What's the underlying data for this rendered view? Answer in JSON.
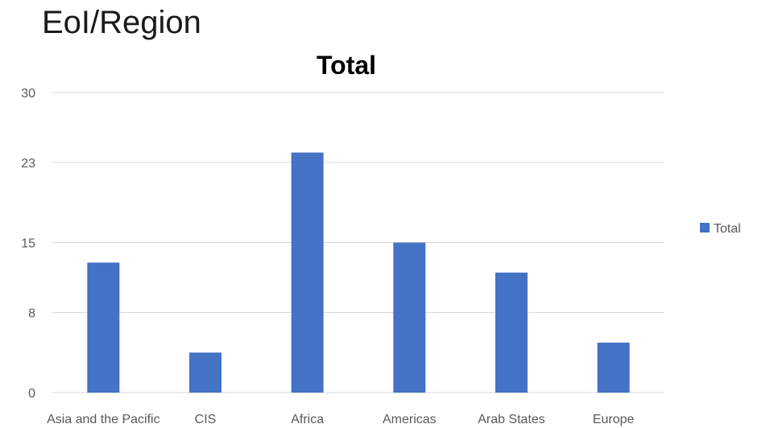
{
  "page": {
    "title": "EoI/Region"
  },
  "chart_data": {
    "type": "bar",
    "title": "Total",
    "xlabel": "",
    "ylabel": "",
    "categories": [
      "Asia and the Pacific",
      "CIS",
      "Africa",
      "Americas",
      "Arab States",
      "Europe"
    ],
    "series": [
      {
        "name": "Total",
        "values": [
          13,
          4,
          24,
          15,
          12,
          5
        ],
        "color": "#4472C4"
      }
    ],
    "ylim": [
      0,
      30
    ],
    "yticks": [
      0,
      8,
      15,
      23,
      30
    ],
    "grid": true,
    "legend": "right",
    "colors": {
      "bar": "#4472C4",
      "grid": "#D9D9D9",
      "text": "#595959"
    }
  }
}
